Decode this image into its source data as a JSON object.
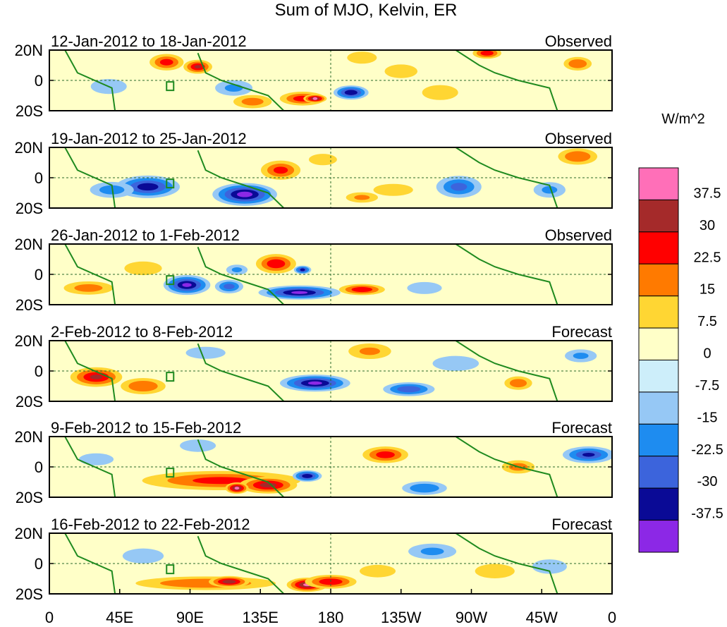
{
  "chart_data": {
    "type": "heatmap",
    "title": "Sum of MJO, Kelvin, ER",
    "units": "W/m^2",
    "x_ticks": [
      "0",
      "45E",
      "90E",
      "135E",
      "180",
      "135W",
      "90W",
      "45W",
      "0"
    ],
    "y_ticks": [
      "20N",
      "0",
      "20S"
    ],
    "xlim": [
      0,
      360
    ],
    "ylim": [
      -20,
      20
    ],
    "colorbar": {
      "labels": [
        "37.5",
        "30",
        "22.5",
        "15",
        "7.5",
        "0",
        "-7.5",
        "-15",
        "-22.5",
        "-30",
        "-37.5"
      ],
      "colors": [
        "#ff6fb8",
        "#a52a2a",
        "#ff0000",
        "#ff7a00",
        "#ffd633",
        "#ffffc8",
        "#cdeefa",
        "#96c8f5",
        "#1e8cf0",
        "#3c64dc",
        "#0a0a96",
        "#8c28e6"
      ]
    },
    "panels": [
      {
        "dates": "12-Jan-2012 to 18-Jan-2012",
        "type": "Observed",
        "blobs": [
          [
            75,
            12,
            12,
            6,
            25
          ],
          [
            95,
            9,
            10,
            5,
            30
          ],
          [
            280,
            18,
            10,
            4,
            28
          ],
          [
            338,
            11,
            10,
            5,
            22
          ],
          [
            200,
            15,
            12,
            5,
            10
          ],
          [
            38,
            -4,
            14,
            6,
            -12
          ],
          [
            162,
            -12,
            16,
            5,
            26
          ],
          [
            170,
            -12,
            8,
            3,
            38
          ],
          [
            193,
            -8,
            12,
            5,
            -36
          ],
          [
            118,
            -5,
            14,
            6,
            -15
          ],
          [
            250,
            -8,
            14,
            6,
            12
          ],
          [
            130,
            -14,
            14,
            5,
            18
          ],
          [
            225,
            6,
            14,
            6,
            8
          ]
        ]
      },
      {
        "dates": "19-Jan-2012 to 25-Jan-2012",
        "type": "Observed",
        "blobs": [
          [
            63,
            -6,
            22,
            8,
            -34
          ],
          [
            125,
            -11,
            22,
            8,
            -40
          ],
          [
            148,
            5,
            14,
            7,
            24
          ],
          [
            338,
            14,
            14,
            6,
            22
          ],
          [
            262,
            -6,
            16,
            8,
            -24
          ],
          [
            320,
            -8,
            12,
            6,
            -15
          ],
          [
            220,
            -8,
            16,
            5,
            10
          ],
          [
            200,
            -13,
            12,
            4,
            15
          ],
          [
            40,
            -8,
            16,
            6,
            -18
          ],
          [
            175,
            12,
            12,
            5,
            8
          ]
        ]
      },
      {
        "dates": "26-Jan-2012 to 1-Feb-2012",
        "type": "Observed",
        "blobs": [
          [
            88,
            -7,
            16,
            7,
            -38
          ],
          [
            115,
            -8,
            10,
            5,
            -25
          ],
          [
            145,
            7,
            14,
            7,
            28
          ],
          [
            160,
            -12,
            28,
            5,
            -38
          ],
          [
            200,
            -10,
            16,
            4,
            28
          ],
          [
            162,
            3,
            6,
            3,
            -32
          ],
          [
            120,
            3,
            8,
            4,
            -15
          ],
          [
            25,
            -9,
            18,
            5,
            18
          ],
          [
            60,
            4,
            16,
            6,
            8
          ],
          [
            240,
            -9,
            14,
            5,
            -10
          ]
        ]
      },
      {
        "dates": "2-Feb-2012 to 8-Feb-2012",
        "type": "Forecast",
        "blobs": [
          [
            30,
            -4,
            18,
            7,
            30
          ],
          [
            60,
            -10,
            16,
            6,
            22
          ],
          [
            170,
            -8,
            24,
            6,
            -38
          ],
          [
            230,
            -12,
            18,
            5,
            -28
          ],
          [
            205,
            13,
            16,
            6,
            15
          ],
          [
            300,
            -8,
            10,
            5,
            20
          ],
          [
            100,
            12,
            16,
            5,
            -10
          ],
          [
            260,
            5,
            18,
            6,
            -12
          ],
          [
            340,
            10,
            12,
            5,
            -15
          ]
        ]
      },
      {
        "dates": "9-Feb-2012 to 15-Feb-2012",
        "type": "Forecast",
        "blobs": [
          [
            110,
            -9,
            56,
            7,
            24
          ],
          [
            140,
            -12,
            20,
            6,
            32
          ],
          [
            120,
            -14,
            8,
            4,
            38
          ],
          [
            165,
            -6,
            10,
            4,
            -36
          ],
          [
            215,
            8,
            16,
            6,
            26
          ],
          [
            240,
            -14,
            16,
            5,
            -22
          ],
          [
            345,
            8,
            18,
            6,
            -30
          ],
          [
            300,
            0,
            12,
            5,
            18
          ],
          [
            95,
            14,
            14,
            5,
            -12
          ],
          [
            30,
            5,
            14,
            5,
            -10
          ]
        ]
      },
      {
        "dates": "16-Feb-2012 to 22-Feb-2012",
        "type": "Forecast",
        "blobs": [
          [
            100,
            -13,
            50,
            5,
            22
          ],
          [
            115,
            -12,
            14,
            4,
            34
          ],
          [
            165,
            -14,
            14,
            5,
            38
          ],
          [
            180,
            -12,
            18,
            5,
            28
          ],
          [
            210,
            -5,
            14,
            5,
            12
          ],
          [
            285,
            -5,
            16,
            6,
            10
          ],
          [
            60,
            5,
            16,
            6,
            -12
          ],
          [
            245,
            8,
            18,
            6,
            -15
          ],
          [
            320,
            -2,
            14,
            6,
            -10
          ]
        ]
      }
    ]
  }
}
